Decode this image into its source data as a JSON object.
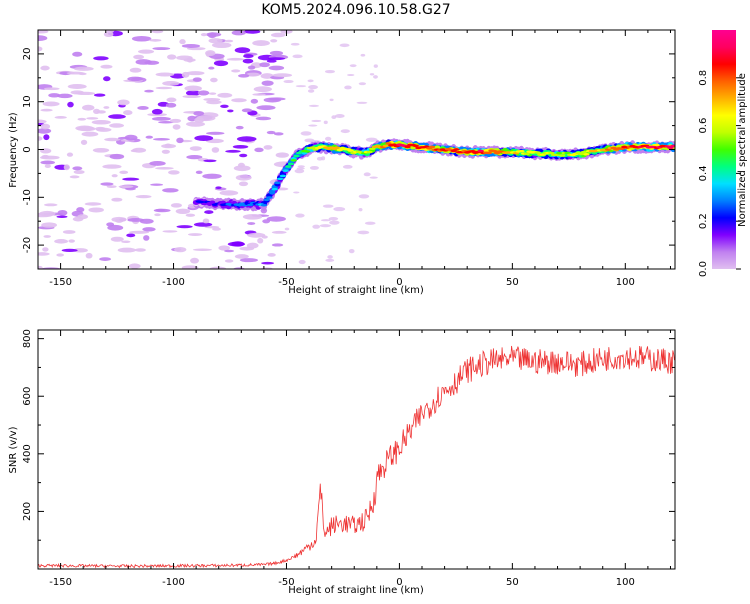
{
  "figure": {
    "title": "KOM5.2024.096.10.58.G27"
  },
  "colorbar": {
    "label": "Normalized spectral amplitude",
    "ticks": [
      0.0,
      0.2,
      0.4,
      0.6,
      0.8
    ],
    "tick_labels": [
      "0.0",
      "0.2",
      "0.4",
      "0.6",
      "0.8"
    ],
    "colors": [
      "#e0bff0",
      "#c080f0",
      "#8000ff",
      "#0000ff",
      "#0080ff",
      "#00e0ff",
      "#00ff80",
      "#40ff00",
      "#c0ff00",
      "#ffff00",
      "#ffb000",
      "#ff6000",
      "#ff0000",
      "#ff0060",
      "#ff0090"
    ]
  },
  "chart_data": [
    {
      "type": "heatmap",
      "xlabel": "Height of straight line (km)",
      "ylabel": "Frequency (Hz)",
      "xlim": [
        -160,
        122
      ],
      "ylim": [
        -25,
        25
      ],
      "xticks": [
        -150,
        -100,
        -50,
        0,
        50,
        100
      ],
      "xtick_labels": [
        "-150",
        "-100",
        "-50",
        "0",
        "50",
        "100"
      ],
      "yticks": [
        -20,
        -10,
        0,
        10,
        20
      ],
      "ytick_labels": [
        "-20",
        "-10",
        "0",
        "10",
        "20"
      ],
      "ridge_x": [
        -90,
        -80,
        -70,
        -60,
        -55,
        -50,
        -45,
        -40,
        -35,
        -30,
        -25,
        -20,
        -15,
        -10,
        -5,
        0,
        10,
        20,
        30,
        40,
        50,
        60,
        70,
        80,
        90,
        100,
        110,
        122
      ],
      "ridge_y": [
        -11,
        -11.5,
        -11.5,
        -11.5,
        -8,
        -4,
        -1,
        0,
        0.5,
        0.3,
        0,
        -0.5,
        -0.8,
        0.5,
        1,
        1,
        0.5,
        0,
        -0.5,
        -0.5,
        -0.5,
        -0.8,
        -1,
        -1,
        0,
        0.5,
        0.5,
        0.5
      ],
      "ridge_amplitude": [
        0.15,
        0.2,
        0.25,
        0.3,
        0.35,
        0.4,
        0.45,
        0.55,
        0.65,
        0.7,
        0.65,
        0.6,
        0.55,
        0.7,
        0.8,
        0.9,
        0.85,
        0.8,
        0.85,
        0.85,
        0.7,
        0.6,
        0.55,
        0.6,
        0.7,
        0.85,
        0.9,
        0.9
      ]
    },
    {
      "type": "line",
      "xlabel": "Height of straight line (km)",
      "ylabel": "SNR (v/v)",
      "xlim": [
        -160,
        122
      ],
      "ylim": [
        0,
        830
      ],
      "xticks": [
        -150,
        -100,
        -50,
        0,
        50,
        100
      ],
      "xtick_labels": [
        "-150",
        "-100",
        "-50",
        "0",
        "50",
        "100"
      ],
      "yticks": [
        200,
        400,
        600,
        800
      ],
      "ytick_labels": [
        "200",
        "400",
        "600",
        "800"
      ],
      "color": "#ee3333",
      "x": [
        -160,
        -120,
        -80,
        -60,
        -55,
        -50,
        -45,
        -40,
        -37,
        -35,
        -33,
        -30,
        -25,
        -20,
        -15,
        -12,
        -10,
        -5,
        0,
        5,
        10,
        15,
        20,
        25,
        30,
        40,
        50,
        60,
        70,
        80,
        90,
        100,
        110,
        122
      ],
      "y": [
        12,
        10,
        12,
        15,
        20,
        30,
        50,
        80,
        100,
        270,
        120,
        150,
        160,
        150,
        170,
        220,
        320,
        380,
        420,
        480,
        540,
        580,
        620,
        650,
        690,
        720,
        730,
        720,
        720,
        710,
        730,
        740,
        730,
        720
      ]
    }
  ]
}
